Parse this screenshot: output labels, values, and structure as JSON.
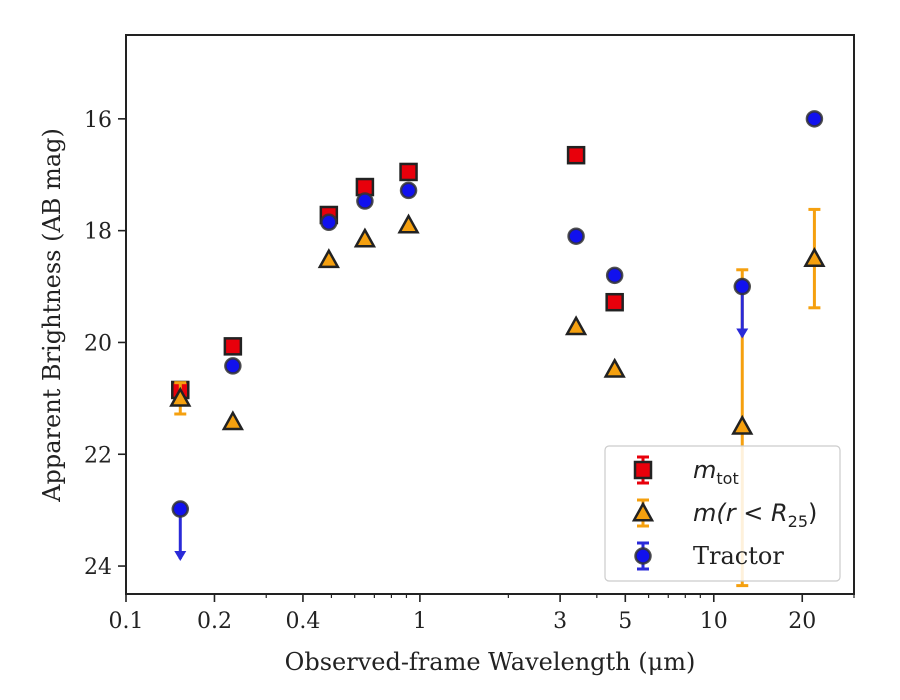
{
  "chart_data": {
    "type": "scatter",
    "title": "",
    "xlabel": "Observed-frame Wavelength (μm)",
    "ylabel": "Apparent Brightness (AB mag)",
    "xscale": "log",
    "xlim": [
      0.1,
      30
    ],
    "ylim": [
      24.5,
      14.5
    ],
    "y_inverted": true,
    "grid": false,
    "legend_position": "lower-right",
    "xticks": [
      {
        "value": 0.1,
        "label": "0.1"
      },
      {
        "value": 0.2,
        "label": "0.2"
      },
      {
        "value": 0.4,
        "label": "0.4"
      },
      {
        "value": 1,
        "label": "1"
      },
      {
        "value": 3,
        "label": "3"
      },
      {
        "value": 5,
        "label": "5"
      },
      {
        "value": 10,
        "label": "10"
      },
      {
        "value": 20,
        "label": "20"
      }
    ],
    "yticks": [
      {
        "value": 16,
        "label": "16"
      },
      {
        "value": 18,
        "label": "18"
      },
      {
        "value": 20,
        "label": "20"
      },
      {
        "value": 22,
        "label": "22"
      },
      {
        "value": 24,
        "label": "24"
      }
    ],
    "series": [
      {
        "name": "m_tot",
        "legend_label": "m",
        "legend_sub": "tot",
        "marker": "square",
        "face_color": "#e8000b",
        "error_color": "#e8000b",
        "points": [
          {
            "x": 0.153,
            "y": 20.85
          },
          {
            "x": 0.231,
            "y": 20.07
          },
          {
            "x": 0.49,
            "y": 17.72
          },
          {
            "x": 0.65,
            "y": 17.22
          },
          {
            "x": 0.915,
            "y": 16.95
          },
          {
            "x": 3.4,
            "y": 16.65
          },
          {
            "x": 4.6,
            "y": 19.28
          }
        ]
      },
      {
        "name": "m(r < R25)",
        "legend_label": "m(r < R",
        "legend_sub": "25",
        "legend_close": ")",
        "marker": "triangle",
        "face_color": "#f5a00f",
        "error_color": "#f5a00f",
        "points": [
          {
            "x": 0.153,
            "y": 21.0,
            "err": 0.28
          },
          {
            "x": 0.231,
            "y": 21.42
          },
          {
            "x": 0.49,
            "y": 18.52
          },
          {
            "x": 0.65,
            "y": 18.15
          },
          {
            "x": 0.915,
            "y": 17.9
          },
          {
            "x": 3.4,
            "y": 19.72
          },
          {
            "x": 4.6,
            "y": 20.48
          },
          {
            "x": 12.5,
            "y": 21.5,
            "err_low": 2.85,
            "err_high": 2.8
          },
          {
            "x": 22.0,
            "y": 18.5,
            "err": 0.88
          }
        ]
      },
      {
        "name": "Tractor",
        "legend_label": "Tractor",
        "marker": "circle",
        "face_color": "#1111ee",
        "error_color": "#2a2ad8",
        "points": [
          {
            "x": 0.153,
            "y": 22.98,
            "upper_limit": true
          },
          {
            "x": 0.231,
            "y": 20.42
          },
          {
            "x": 0.49,
            "y": 17.85
          },
          {
            "x": 0.65,
            "y": 17.47
          },
          {
            "x": 0.915,
            "y": 17.28
          },
          {
            "x": 3.4,
            "y": 18.1
          },
          {
            "x": 4.6,
            "y": 18.8
          },
          {
            "x": 12.5,
            "y": 19.0,
            "upper_limit": true
          },
          {
            "x": 22.0,
            "y": 16.0
          }
        ]
      }
    ]
  }
}
